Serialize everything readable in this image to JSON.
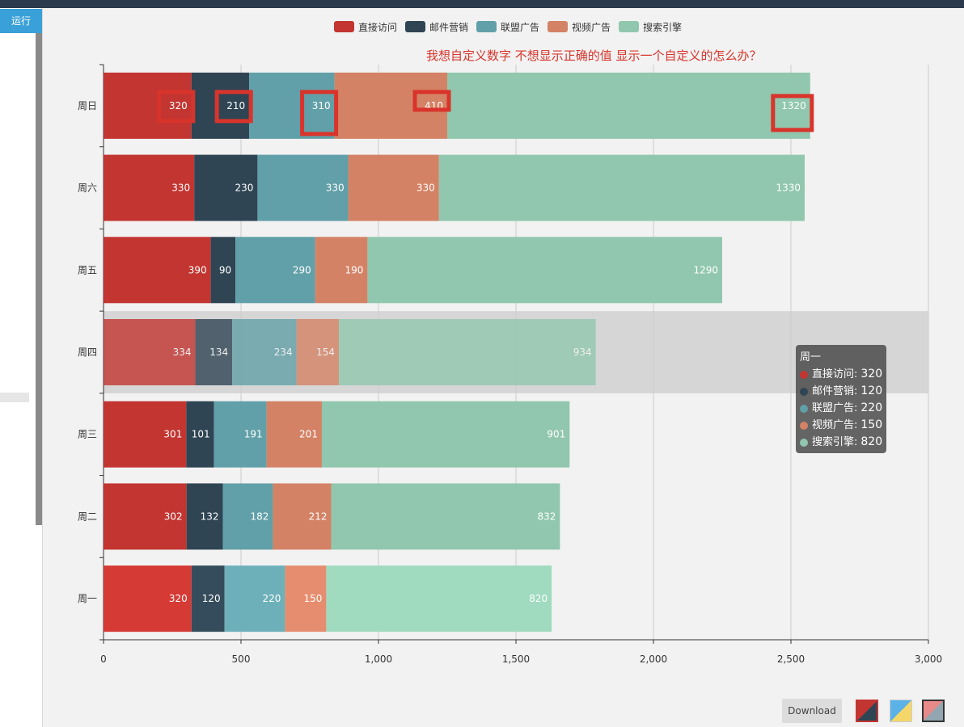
{
  "toolbar": {
    "run_label": "运行"
  },
  "annotation": {
    "text": "我想自定义数字   不想显示正确的值   显示一个自定义的怎么办？",
    "color": "#d9342b",
    "boxed_labels": [
      "320",
      "210",
      "310",
      "410",
      "1320"
    ]
  },
  "chart_data": {
    "type": "bar",
    "orientation": "horizontal",
    "stacked": true,
    "categories": [
      "周一",
      "周二",
      "周三",
      "周四",
      "周五",
      "周六",
      "周日"
    ],
    "series": [
      {
        "name": "直接访问",
        "color": "#c23531",
        "values": [
          320,
          302,
          301,
          334,
          390,
          330,
          320
        ]
      },
      {
        "name": "邮件营销",
        "color": "#2f4554",
        "values": [
          120,
          132,
          101,
          134,
          90,
          230,
          210
        ]
      },
      {
        "name": "联盟广告",
        "color": "#61a0a8",
        "values": [
          220,
          182,
          191,
          234,
          290,
          330,
          310
        ]
      },
      {
        "name": "视频广告",
        "color": "#d48265",
        "values": [
          150,
          212,
          201,
          154,
          190,
          330,
          410
        ]
      },
      {
        "name": "搜索引擎",
        "color": "#91c7ae",
        "values": [
          820,
          832,
          901,
          934,
          1290,
          1330,
          1320
        ]
      }
    ],
    "xlim": [
      0,
      3000
    ],
    "xticks": [
      0,
      500,
      1000,
      1500,
      2000,
      2500,
      3000
    ],
    "xtick_labels": [
      "0",
      "500",
      "1,000",
      "1,500",
      "2,000",
      "2,500",
      "3,000"
    ],
    "grid": true,
    "legend_position": "top-center",
    "highlighted_category": "周四",
    "emphasized_category": "周一"
  },
  "tooltip": {
    "title": "周一",
    "rows": [
      {
        "label": "直接访问:",
        "value": "320",
        "color": "#c23531"
      },
      {
        "label": "邮件营销:",
        "value": "120",
        "color": "#2f4554"
      },
      {
        "label": "联盟广告:",
        "value": "220",
        "color": "#61a0a8"
      },
      {
        "label": "视频广告:",
        "value": "150",
        "color": "#d48265"
      },
      {
        "label": "搜索引擎:",
        "value": "820",
        "color": "#91c7ae"
      }
    ]
  },
  "footer": {
    "download_label": "Download",
    "themes": [
      "theme-red-navy-icon",
      "theme-blue-yellow-icon",
      "theme-pink-gray-icon"
    ]
  }
}
